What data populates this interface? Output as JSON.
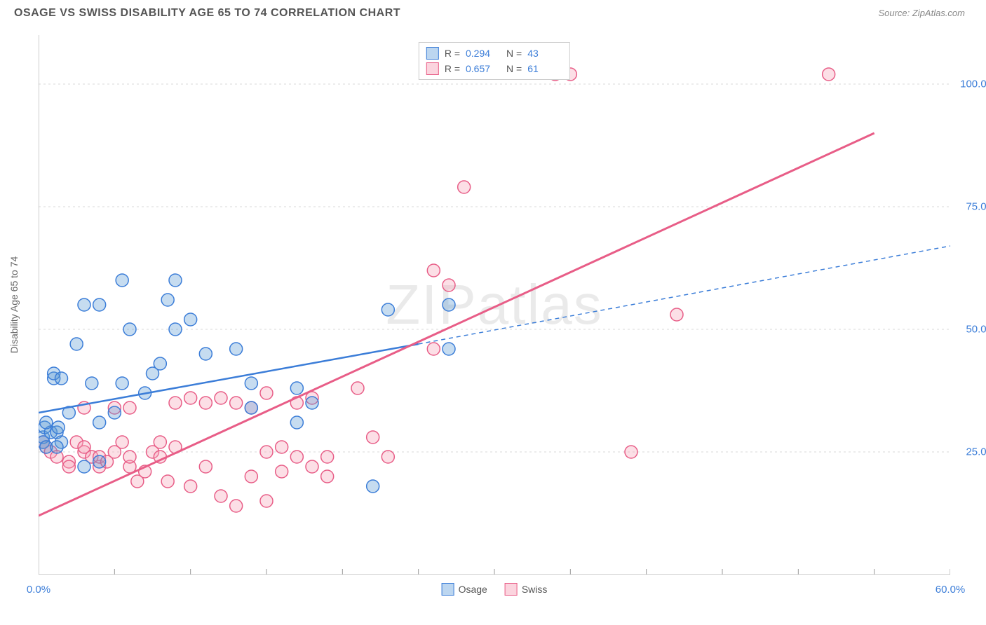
{
  "header": {
    "title": "OSAGE VS SWISS DISABILITY AGE 65 TO 74 CORRELATION CHART",
    "source_prefix": "Source: ",
    "source": "ZipAtlas.com"
  },
  "watermark": "ZIPatlas",
  "ylabel": "Disability Age 65 to 74",
  "chart": {
    "type": "scatter",
    "xlim": [
      0,
      60
    ],
    "ylim": [
      0,
      110
    ],
    "xticks": [
      0,
      5,
      10,
      15,
      20,
      25,
      30,
      35,
      40,
      45,
      50,
      55,
      60
    ],
    "xtick_labels": {
      "0": "0.0%",
      "60": "60.0%"
    },
    "yticks": [
      25,
      50,
      75,
      100
    ],
    "ytick_labels": {
      "25": "25.0%",
      "50": "50.0%",
      "75": "75.0%",
      "100": "100.0%"
    },
    "grid_color": "#d8d8d8",
    "axis_color": "#999",
    "background": "#ffffff",
    "marker_radius": 9,
    "marker_stroke_width": 1.5,
    "marker_fill_opacity": 0.35,
    "series": [
      {
        "name": "Osage",
        "color": "#5b9bd5",
        "stroke": "#3b7dd8",
        "R": "0.294",
        "N": "43",
        "regression": {
          "x1": 0,
          "y1": 33,
          "x2": 25,
          "y2": 47,
          "x2_dash": 60,
          "y2_dash": 67
        },
        "line_width": 2.5,
        "points": [
          [
            0.3,
            28
          ],
          [
            0.3,
            27
          ],
          [
            0.4,
            30
          ],
          [
            0.5,
            26
          ],
          [
            0.8,
            29
          ],
          [
            0.5,
            31
          ],
          [
            1,
            40
          ],
          [
            1,
            41
          ],
          [
            1.2,
            29
          ],
          [
            1.3,
            30
          ],
          [
            1.5,
            27
          ],
          [
            1.2,
            26
          ],
          [
            1.5,
            40
          ],
          [
            2,
            33
          ],
          [
            2.5,
            47
          ],
          [
            3,
            55
          ],
          [
            3,
            22
          ],
          [
            3.5,
            39
          ],
          [
            4,
            31
          ],
          [
            4,
            55
          ],
          [
            4,
            23
          ],
          [
            5,
            33
          ],
          [
            5.5,
            39
          ],
          [
            5.5,
            60
          ],
          [
            6,
            50
          ],
          [
            7,
            37
          ],
          [
            7.5,
            41
          ],
          [
            8,
            43
          ],
          [
            8.5,
            56
          ],
          [
            9,
            60
          ],
          [
            9,
            50
          ],
          [
            10,
            52
          ],
          [
            11,
            45
          ],
          [
            13,
            46
          ],
          [
            14,
            39
          ],
          [
            14,
            34
          ],
          [
            17,
            38
          ],
          [
            17,
            31
          ],
          [
            18,
            35
          ],
          [
            22,
            18
          ],
          [
            23,
            54
          ],
          [
            27,
            55
          ],
          [
            27,
            46
          ]
        ]
      },
      {
        "name": "Swiss",
        "color": "#f5a3b7",
        "stroke": "#e85d87",
        "R": "0.657",
        "N": "61",
        "regression": {
          "x1": 0,
          "y1": 12,
          "x2": 55,
          "y2": 90
        },
        "line_width": 3,
        "points": [
          [
            0.3,
            27
          ],
          [
            0.5,
            26
          ],
          [
            0.8,
            25
          ],
          [
            1.2,
            24
          ],
          [
            2,
            23
          ],
          [
            2,
            22
          ],
          [
            2.5,
            27
          ],
          [
            3,
            25
          ],
          [
            3,
            26
          ],
          [
            3,
            34
          ],
          [
            3.5,
            24
          ],
          [
            4,
            22
          ],
          [
            4,
            24
          ],
          [
            4.5,
            23
          ],
          [
            5,
            25
          ],
          [
            5,
            34
          ],
          [
            5.5,
            27
          ],
          [
            6,
            22
          ],
          [
            6,
            24
          ],
          [
            6,
            34
          ],
          [
            6.5,
            19
          ],
          [
            7,
            21
          ],
          [
            7.5,
            25
          ],
          [
            8,
            24
          ],
          [
            8,
            27
          ],
          [
            8.5,
            19
          ],
          [
            9,
            35
          ],
          [
            9,
            26
          ],
          [
            10,
            36
          ],
          [
            10,
            18
          ],
          [
            11,
            35
          ],
          [
            11,
            22
          ],
          [
            12,
            36
          ],
          [
            12,
            16
          ],
          [
            13,
            14
          ],
          [
            13,
            35
          ],
          [
            14,
            34
          ],
          [
            14,
            20
          ],
          [
            15,
            37
          ],
          [
            15,
            15
          ],
          [
            15,
            25
          ],
          [
            16,
            26
          ],
          [
            16,
            21
          ],
          [
            17,
            24
          ],
          [
            17,
            35
          ],
          [
            18,
            36
          ],
          [
            18,
            22
          ],
          [
            19,
            20
          ],
          [
            19,
            24
          ],
          [
            21,
            38
          ],
          [
            22,
            28
          ],
          [
            23,
            24
          ],
          [
            26,
            46
          ],
          [
            26,
            62
          ],
          [
            27,
            59
          ],
          [
            28,
            79
          ],
          [
            34,
            102
          ],
          [
            35,
            102
          ],
          [
            39,
            25
          ],
          [
            42,
            53
          ],
          [
            52,
            102
          ]
        ]
      }
    ]
  },
  "legend_bottom": [
    {
      "label": "Osage",
      "fill": "#bcd6f0",
      "stroke": "#3b7dd8"
    },
    {
      "label": "Swiss",
      "fill": "#fbd4de",
      "stroke": "#e85d87"
    }
  ],
  "legend_top_swatches": [
    {
      "fill": "#bcd6f0",
      "stroke": "#3b7dd8"
    },
    {
      "fill": "#fbd4de",
      "stroke": "#e85d87"
    }
  ]
}
